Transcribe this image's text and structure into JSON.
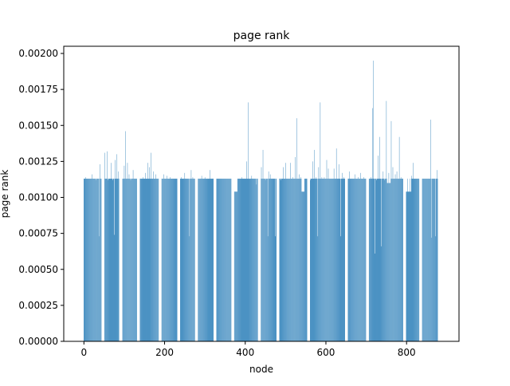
{
  "chart_data": {
    "type": "bar",
    "title": "page rank",
    "xlabel": "node",
    "ylabel": "page rank",
    "xlim": [
      -50,
      930
    ],
    "ylim": [
      0,
      0.00205
    ],
    "xticks": [
      0,
      200,
      400,
      600,
      800
    ],
    "xtick_labels": [
      "0",
      "200",
      "400",
      "600",
      "800"
    ],
    "yticks": [
      0,
      0.00025,
      0.0005,
      0.00075,
      0.001,
      0.00125,
      0.0015,
      0.00175,
      0.002
    ],
    "ytick_labels": [
      "0.00000",
      "0.00025",
      "0.00050",
      "0.00075",
      "0.00100",
      "0.00125",
      "0.00150",
      "0.00175",
      "0.00200"
    ],
    "grid": false,
    "bar_color": "#1f77b4",
    "base_value": 0.00113,
    "node_count": 878,
    "gaps": [
      [
        44,
        50
      ],
      [
        88,
        95
      ],
      [
        132,
        138
      ],
      [
        186,
        192
      ],
      [
        232,
        238
      ],
      [
        276,
        282
      ],
      [
        322,
        328
      ],
      [
        366,
        372
      ],
      [
        432,
        438
      ],
      [
        478,
        484
      ],
      [
        554,
        560
      ],
      [
        648,
        654
      ],
      [
        700,
        706
      ],
      [
        792,
        798
      ],
      [
        832,
        838
      ]
    ],
    "low_runs": [
      [
        372,
        380,
        0.00104
      ],
      [
        540,
        546,
        0.00104
      ],
      [
        752,
        760,
        0.0011
      ],
      [
        796,
        812,
        0.00104
      ]
    ],
    "peaks": [
      [
        4,
        0.00114
      ],
      [
        10,
        0.00113
      ],
      [
        20,
        0.00116
      ],
      [
        30,
        0.00112
      ],
      [
        38,
        0.00073
      ],
      [
        40,
        0.00123
      ],
      [
        52,
        0.00131
      ],
      [
        58,
        0.00132
      ],
      [
        60,
        0.00112
      ],
      [
        68,
        0.00124
      ],
      [
        72,
        0.00112
      ],
      [
        75,
        0.00074
      ],
      [
        78,
        0.00126
      ],
      [
        82,
        0.0013
      ],
      [
        86,
        0.00118
      ],
      [
        100,
        0.00122
      ],
      [
        103,
        0.00146
      ],
      [
        108,
        0.00124
      ],
      [
        112,
        0.00116
      ],
      [
        116,
        0.00112
      ],
      [
        122,
        0.00119
      ],
      [
        126,
        0.00113
      ],
      [
        146,
        0.00114
      ],
      [
        152,
        0.00117
      ],
      [
        158,
        0.00124
      ],
      [
        162,
        0.00121
      ],
      [
        166,
        0.00131
      ],
      [
        172,
        0.00118
      ],
      [
        178,
        0.00116
      ],
      [
        182,
        0.00113
      ],
      [
        198,
        0.00116
      ],
      [
        206,
        0.00115
      ],
      [
        214,
        0.00114
      ],
      [
        222,
        0.00113
      ],
      [
        242,
        0.00114
      ],
      [
        250,
        0.00117
      ],
      [
        262,
        0.00073
      ],
      [
        266,
        0.00119
      ],
      [
        270,
        0.00114
      ],
      [
        292,
        0.00115
      ],
      [
        300,
        0.00114
      ],
      [
        312,
        0.00119
      ],
      [
        316,
        0.00113
      ],
      [
        340,
        0.00113
      ],
      [
        348,
        0.00113
      ],
      [
        386,
        0.00113
      ],
      [
        392,
        0.00114
      ],
      [
        404,
        0.00125
      ],
      [
        408,
        0.00166
      ],
      [
        416,
        0.00115
      ],
      [
        424,
        0.00113
      ],
      [
        428,
        0.00109
      ],
      [
        440,
        0.00121
      ],
      [
        444,
        0.00133
      ],
      [
        450,
        0.00112
      ],
      [
        456,
        0.00073
      ],
      [
        458,
        0.00118
      ],
      [
        462,
        0.00116
      ],
      [
        468,
        0.00113
      ],
      [
        474,
        0.00073
      ],
      [
        488,
        0.00112
      ],
      [
        494,
        0.00121
      ],
      [
        500,
        0.00124
      ],
      [
        506,
        0.00113
      ],
      [
        512,
        0.00124
      ],
      [
        518,
        0.00114
      ],
      [
        524,
        0.00128
      ],
      [
        528,
        0.00155
      ],
      [
        534,
        0.00116
      ],
      [
        538,
        0.00114
      ],
      [
        562,
        0.00112
      ],
      [
        568,
        0.00125
      ],
      [
        572,
        0.00133
      ],
      [
        576,
        0.00114
      ],
      [
        580,
        0.00073
      ],
      [
        582,
        0.00121
      ],
      [
        586,
        0.00166
      ],
      [
        590,
        0.00114
      ],
      [
        596,
        0.00114
      ],
      [
        602,
        0.00126
      ],
      [
        606,
        0.0012
      ],
      [
        612,
        0.00113
      ],
      [
        620,
        0.0012
      ],
      [
        626,
        0.00134
      ],
      [
        632,
        0.00123
      ],
      [
        636,
        0.00073
      ],
      [
        640,
        0.00117
      ],
      [
        644,
        0.00114
      ],
      [
        658,
        0.00118
      ],
      [
        664,
        0.00113
      ],
      [
        672,
        0.00116
      ],
      [
        680,
        0.00114
      ],
      [
        686,
        0.00117
      ],
      [
        694,
        0.00114
      ],
      [
        712,
        0.00114
      ],
      [
        716,
        0.00162
      ],
      [
        718,
        0.00195
      ],
      [
        722,
        0.00061
      ],
      [
        726,
        0.00112
      ],
      [
        730,
        0.00129
      ],
      [
        734,
        0.00142
      ],
      [
        738,
        0.00066
      ],
      [
        742,
        0.00118
      ],
      [
        746,
        0.00112
      ],
      [
        750,
        0.00167
      ],
      [
        756,
        0.00117
      ],
      [
        762,
        0.00153
      ],
      [
        766,
        0.00121
      ],
      [
        772,
        0.00116
      ],
      [
        776,
        0.00118
      ],
      [
        782,
        0.00142
      ],
      [
        786,
        0.00114
      ],
      [
        802,
        0.00113
      ],
      [
        808,
        0.00113
      ],
      [
        812,
        0.00115
      ],
      [
        816,
        0.00124
      ],
      [
        820,
        0.00113
      ],
      [
        826,
        0.00113
      ],
      [
        844,
        0.00113
      ],
      [
        850,
        0.00113
      ],
      [
        856,
        0.00113
      ],
      [
        860,
        0.00154
      ],
      [
        862,
        0.00072
      ],
      [
        868,
        0.00113
      ],
      [
        872,
        0.00073
      ],
      [
        876,
        0.00119
      ]
    ]
  }
}
